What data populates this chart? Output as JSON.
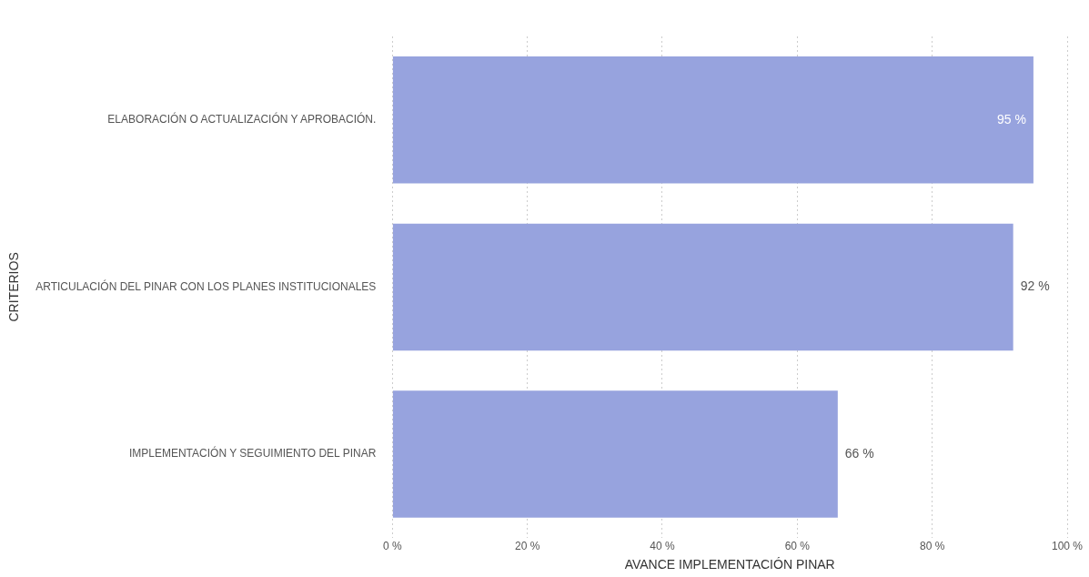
{
  "chart_data": {
    "type": "bar",
    "orientation": "horizontal",
    "categories": [
      "ELABORACIÓN O ACTUALIZACIÓN Y APROBACIÓN.",
      "ARTICULACIÓN DEL PINAR CON LOS PLANES INSTITUCIONALES",
      "IMPLEMENTACIÓN Y SEGUIMIENTO DEL PINAR"
    ],
    "values": [
      95,
      92,
      66
    ],
    "value_labels": [
      "95 %",
      "92 %",
      "66 %"
    ],
    "color": "#97a3de",
    "xlim": [
      0,
      100
    ],
    "xticks": [
      {
        "value": 0,
        "label": "0 %"
      },
      {
        "value": 20,
        "label": "20 %"
      },
      {
        "value": 40,
        "label": "40 %"
      },
      {
        "value": 60,
        "label": "60 %"
      },
      {
        "value": 80,
        "label": "80 %"
      },
      {
        "value": 100,
        "label": "100 %"
      }
    ],
    "xlabel": "AVANCE IMPLEMENTACIÓN PINAR",
    "ylabel": "CRITERIOS",
    "grid": "x",
    "legend": false
  }
}
